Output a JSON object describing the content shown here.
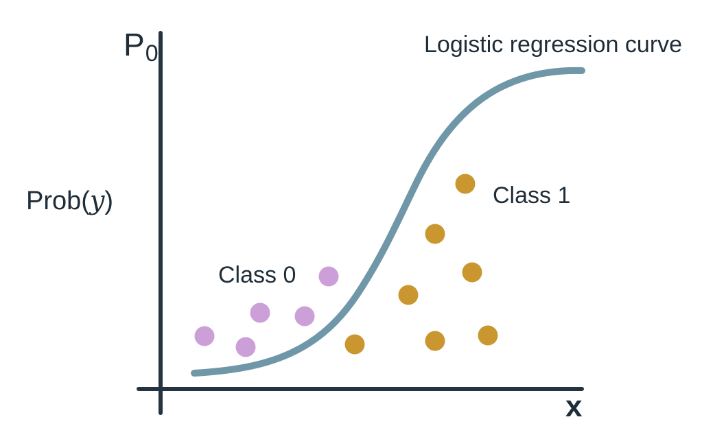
{
  "labels": {
    "y_axis_title_main": "P",
    "y_axis_title_sub": "0",
    "y_axis_label_prefix": "Prob",
    "y_axis_label_open": "(",
    "y_axis_label_var": "y",
    "y_axis_label_close": ")",
    "x_axis_label": "x",
    "curve_label": "Logistic regression curve",
    "class0_label": "Class 0",
    "class1_label": "Class 1"
  },
  "colors": {
    "axis": "#24333f",
    "curve": "#6f97a8",
    "class0": "#cc9fd8",
    "class1": "#c9962f"
  }
}
